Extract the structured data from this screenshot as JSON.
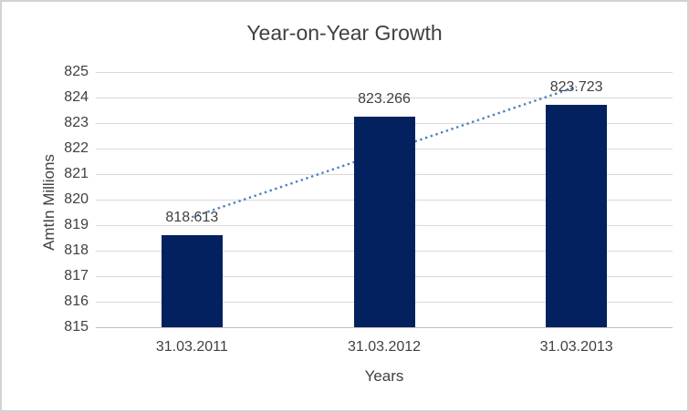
{
  "chart_data": {
    "type": "bar",
    "title": "Year-on-Year Growth",
    "xlabel": "Years",
    "ylabel": "AmtIn Millions",
    "categories": [
      "31.03.2011",
      "31.03.2012",
      "31.03.2013"
    ],
    "values": [
      818.613,
      823.266,
      823.723
    ],
    "value_labels": [
      "818.613",
      "823.266",
      "823.723"
    ],
    "ylim": [
      815,
      825
    ],
    "yticks": [
      815,
      816,
      817,
      818,
      819,
      820,
      821,
      822,
      823,
      824,
      825
    ],
    "grid": "horizontal-major",
    "legend": "none",
    "bar_color": "#03215f",
    "gridline_color": "#d9d9d9",
    "axis_line_color": "#bfbfbf",
    "text_color": "#404040",
    "trendline": {
      "type": "linear",
      "style": "dotted",
      "color": "#4f81bd"
    }
  }
}
